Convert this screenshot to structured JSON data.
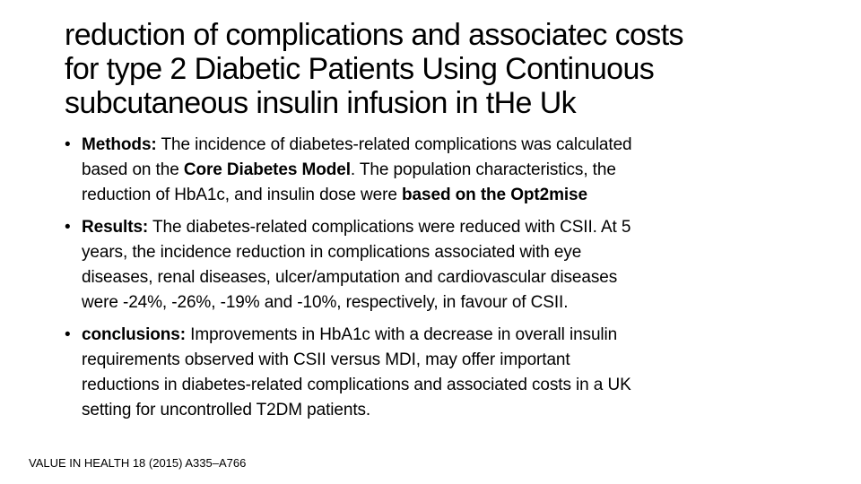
{
  "slide": {
    "title_lines": [
      "reduction of complications and associatec costs",
      "for type 2 Diabetic Patients Using Continuous",
      "subcutaneous insulin infusion in tHe Uk"
    ],
    "bullet_symbol": "•",
    "bullets": [
      {
        "lines": [
          [
            {
              "text": "Methods:",
              "bold": true
            },
            {
              "text": " The incidence of diabetes-related complications was calculated",
              "bold": false
            }
          ],
          [
            {
              "text": "based on the ",
              "bold": false
            },
            {
              "text": "Core Diabetes Model",
              "bold": true
            },
            {
              "text": ". The population characteristics, the",
              "bold": false
            }
          ],
          [
            {
              "text": "reduction of Hb",
              "bold": false
            },
            {
              "text": "A1c, and insulin dose were ",
              "bold": false
            },
            {
              "text": "based on the Opt2mise",
              "bold": true
            }
          ]
        ]
      },
      {
        "lines": [
          [
            {
              "text": "Results:",
              "bold": true
            },
            {
              "text": " The diabetes-related complications were reduced with CSII. At 5",
              "bold": false
            }
          ],
          [
            {
              "text": "years, the incidence reduction in complications associated with eye",
              "bold": false
            }
          ],
          [
            {
              "text": "diseases, renal diseases, ulcer/amputation and cardiovascular diseases",
              "bold": false
            }
          ],
          [
            {
              "text": "were -24%, -26%, -19% and -10%, respectively, in favour of CSII.",
              "bold": false
            }
          ]
        ]
      },
      {
        "lines": [
          [
            {
              "text": "conclusions:",
              "bold": true
            },
            {
              "text": " Improvements in Hb",
              "bold": false
            },
            {
              "text": "A1c with a decrease in overall insulin",
              "bold": false
            }
          ],
          [
            {
              "text": "requirements observed with CSII versus MDI, may offer important",
              "bold": false
            }
          ],
          [
            {
              "text": "reductions in diabetes-related complications and associated costs in a UK",
              "bold": false
            }
          ],
          [
            {
              "text": "setting for uncontrolled T2DM patients.",
              "bold": false
            }
          ]
        ]
      }
    ],
    "footer": "VALUE IN HEALTH 18 (2015) A335–A766"
  }
}
